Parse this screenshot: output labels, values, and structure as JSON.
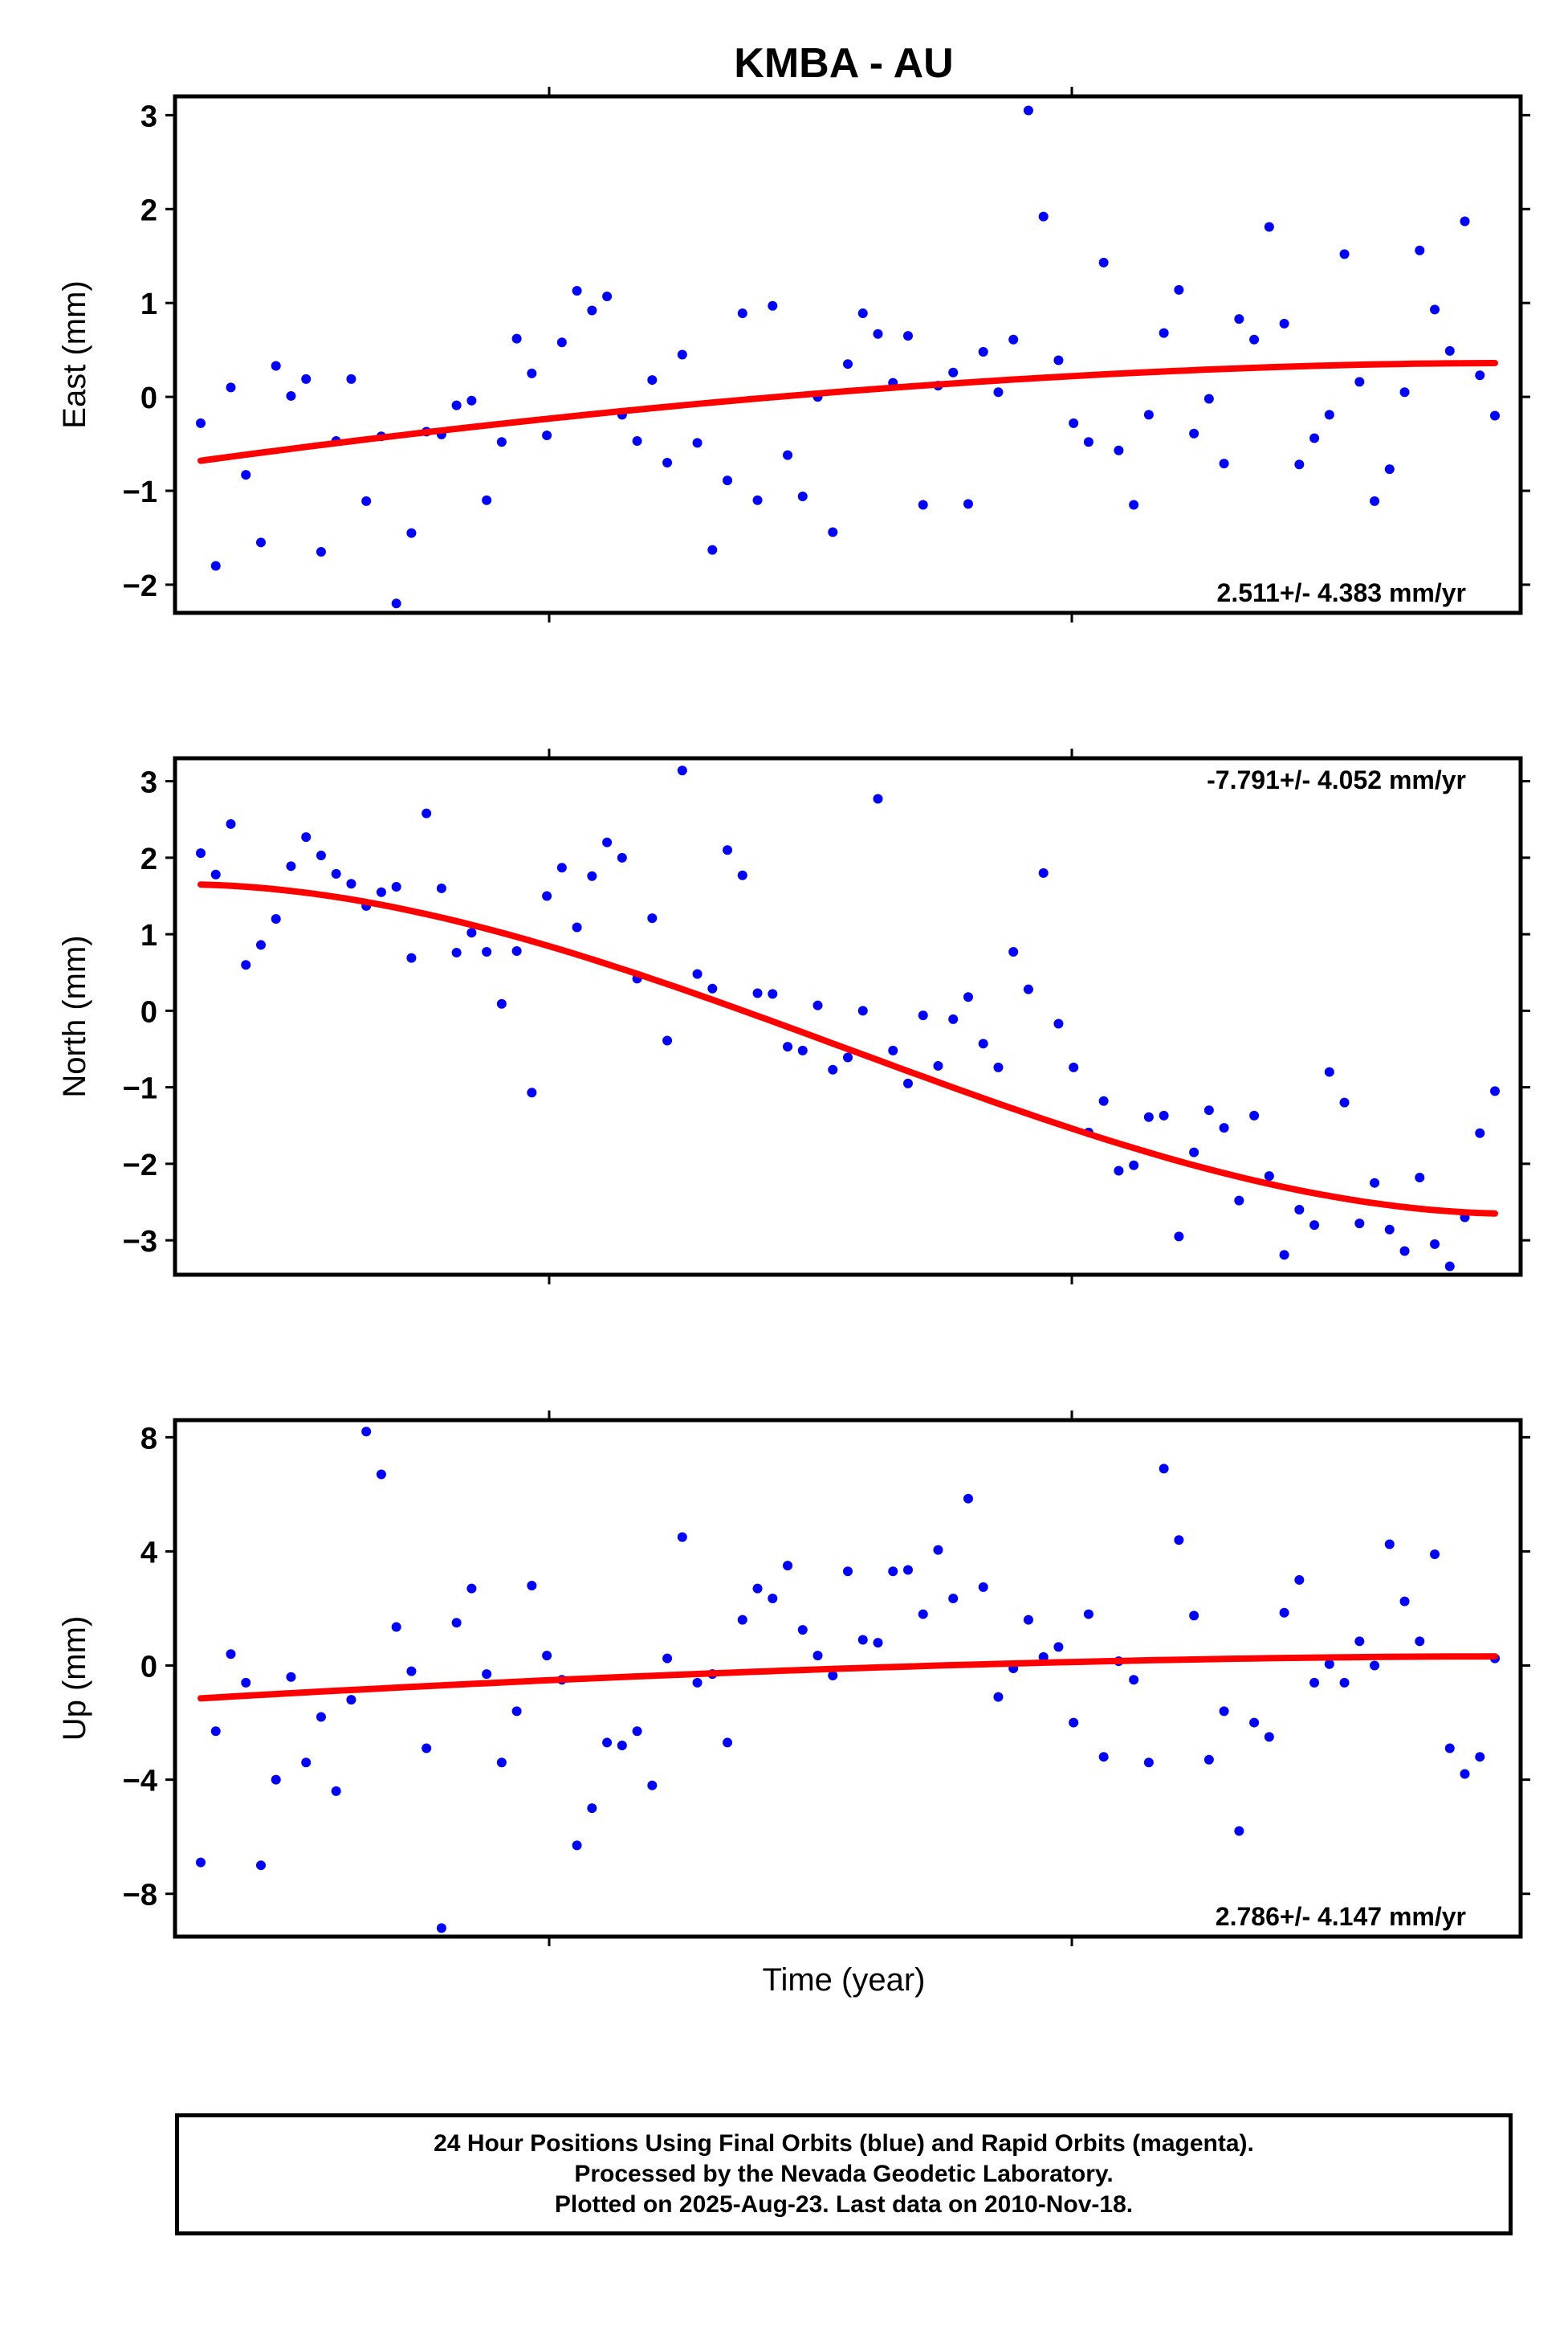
{
  "title": "KMBA - AU",
  "xlabel": "Time (year)",
  "colors": {
    "points": "#0000ff",
    "fit": "#ff0000",
    "axis": "#000000"
  },
  "footer": {
    "line1": "24 Hour Positions Using Final Orbits (blue) and Rapid Orbits (magenta).",
    "line2": "Processed by the Nevada Geodetic Laboratory.",
    "line3": "Plotted on 2025-Aug-23. Last data on 2010-Nov-18."
  },
  "chart_data": [
    {
      "type": "scatter",
      "ylabel": "East (mm)",
      "ylim": [
        -2.3,
        3.2
      ],
      "yticks": [
        -2,
        -1,
        0,
        1,
        2,
        3
      ],
      "rate_label": "2.511+/- 4.383 mm/yr",
      "rate_position": "bottom-right",
      "series": [
        {
          "y": [
            -0.28,
            -1.8,
            0.1,
            -0.83,
            -1.55,
            0.33,
            0.01,
            0.19,
            -1.65,
            -0.47,
            0.19,
            -1.11,
            -0.42,
            -2.2,
            -1.45,
            -0.37,
            -0.4,
            -0.09,
            -0.04,
            -1.1,
            -0.48,
            0.62,
            0.25,
            -0.41,
            0.58,
            1.13,
            0.92,
            1.07,
            -0.19,
            -0.47,
            0.18,
            -0.7,
            0.45,
            -0.49,
            -1.63,
            -0.89,
            0.89,
            -1.1,
            0.97,
            -0.62,
            -1.06,
            0.0,
            -1.44,
            0.35,
            0.89,
            0.67,
            0.15,
            0.65,
            -1.15,
            0.12,
            0.26,
            -1.14,
            0.48,
            0.05,
            0.61,
            3.05,
            1.92,
            0.39,
            -0.28,
            -0.48,
            1.43,
            -0.57,
            -1.15,
            -0.19,
            0.68,
            1.14,
            -0.39,
            -0.02,
            -0.71,
            0.83,
            0.61,
            1.81,
            0.78,
            -0.72,
            -0.44,
            -0.19,
            1.52,
            0.16,
            -1.11,
            -0.77,
            0.05,
            1.56,
            0.93,
            0.49,
            1.87,
            0.23,
            -0.2
          ]
        }
      ],
      "fit": [
        -0.68,
        0.36
      ]
    },
    {
      "type": "scatter",
      "ylabel": "North (mm)",
      "ylim": [
        -3.45,
        3.3
      ],
      "yticks": [
        -3,
        -2,
        -1,
        0,
        1,
        2,
        3
      ],
      "rate_label": "-7.791+/- 4.052 mm/yr",
      "rate_position": "top-right",
      "series": [
        {
          "y": [
            2.06,
            1.78,
            2.44,
            0.6,
            0.86,
            1.2,
            1.89,
            2.27,
            2.03,
            1.79,
            1.66,
            1.37,
            1.55,
            1.62,
            0.69,
            2.58,
            1.6,
            0.76,
            1.02,
            0.77,
            0.09,
            0.78,
            -1.07,
            1.5,
            1.87,
            1.09,
            1.76,
            2.2,
            2.0,
            0.42,
            1.21,
            -0.39,
            3.14,
            0.48,
            0.29,
            2.1,
            1.77,
            0.23,
            0.22,
            -0.47,
            -0.52,
            0.07,
            -0.77,
            -0.61,
            0.0,
            2.77,
            -0.52,
            -0.95,
            -0.06,
            -0.72,
            -0.11,
            0.18,
            -0.43,
            -0.74,
            0.77,
            0.28,
            1.8,
            -0.17,
            -0.74,
            -1.59,
            -1.18,
            -2.09,
            -2.02,
            -1.39,
            -1.37,
            -2.95,
            -1.85,
            -1.3,
            -1.53,
            -2.48,
            -1.37,
            -2.16,
            -3.19,
            -2.6,
            -2.8,
            -0.8,
            -1.2,
            -2.78,
            -2.25,
            -2.86,
            -3.14,
            -2.18,
            -3.05,
            -3.34,
            -2.7,
            -1.6,
            -1.05
          ]
        }
      ],
      "fit": [
        1.65,
        -2.65
      ]
    },
    {
      "type": "scatter",
      "ylabel": "Up (mm)",
      "ylim": [
        -9.5,
        8.6
      ],
      "yticks": [
        -8,
        -4,
        0,
        4,
        8
      ],
      "rate_label": "2.786+/- 4.147 mm/yr",
      "rate_position": "bottom-right",
      "series": [
        {
          "y": [
            -6.9,
            -2.3,
            0.4,
            -0.6,
            -7.0,
            -4.0,
            -0.4,
            -3.4,
            -1.8,
            -4.4,
            -1.2,
            8.2,
            6.7,
            1.35,
            -0.2,
            -2.9,
            -9.2,
            1.5,
            2.7,
            -0.3,
            -3.4,
            -1.6,
            2.8,
            0.35,
            -0.5,
            -6.3,
            -5.0,
            -2.7,
            -2.8,
            -2.3,
            -4.2,
            0.25,
            4.5,
            -0.6,
            -0.3,
            -2.7,
            1.6,
            2.7,
            2.35,
            3.5,
            1.25,
            0.35,
            -0.35,
            3.3,
            0.9,
            0.8,
            3.3,
            3.35,
            1.8,
            4.05,
            2.35,
            5.85,
            2.75,
            -1.1,
            -0.1,
            1.6,
            0.3,
            0.65,
            -2.0,
            1.8,
            -3.2,
            0.15,
            -0.5,
            -3.4,
            6.9,
            4.4,
            1.75,
            -3.3,
            -1.6,
            -5.8,
            -2.0,
            -2.5,
            1.85,
            3.0,
            -0.6,
            0.05,
            -0.6,
            0.85,
            0.0,
            4.25,
            2.25,
            0.85,
            3.9,
            -2.9,
            -3.8,
            -3.2,
            0.25
          ]
        }
      ],
      "fit": [
        -1.15,
        0.32
      ]
    }
  ]
}
